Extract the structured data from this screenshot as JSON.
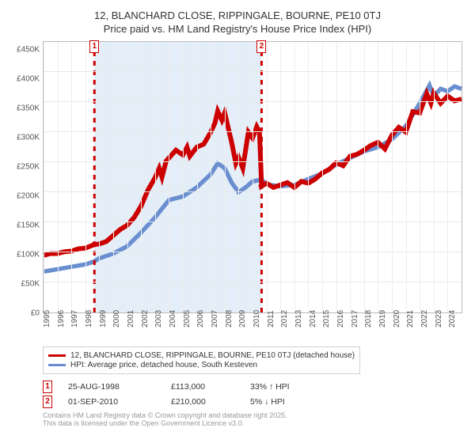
{
  "title_line1": "12, BLANCHARD CLOSE, RIPPINGALE, BOURNE, PE10 0TJ",
  "title_line2": "Price paid vs. HM Land Registry's House Price Index (HPI)",
  "chart": {
    "type": "line",
    "background_color": "#ffffff",
    "grid_color": "#e8e8e8",
    "border_color": "#bbbbbb",
    "shade_color": "#e4eef8",
    "ylim": [
      0,
      450000
    ],
    "ytick_step": 50000,
    "y_ticks": [
      "£0",
      "£50K",
      "£100K",
      "£150K",
      "£200K",
      "£250K",
      "£300K",
      "£350K",
      "£400K",
      "£450K"
    ],
    "xlim": [
      1995,
      2025
    ],
    "x_ticks": [
      1995,
      1996,
      1997,
      1998,
      1999,
      2000,
      2001,
      2002,
      2003,
      2004,
      2005,
      2006,
      2007,
      2008,
      2009,
      2010,
      2011,
      2012,
      2013,
      2014,
      2015,
      2016,
      2017,
      2018,
      2019,
      2020,
      2021,
      2022,
      2023,
      2024
    ],
    "series": [
      {
        "label": "12, BLANCHARD CLOSE, RIPPINGALE, BOURNE, PE10 0TJ (detached house)",
        "color": "#cc0000",
        "line_width": 2,
        "points": [
          [
            1995,
            95000
          ],
          [
            1995.5,
            98000
          ],
          [
            1996,
            98000
          ],
          [
            1996.5,
            101000
          ],
          [
            1997,
            102000
          ],
          [
            1997.5,
            106000
          ],
          [
            1998,
            107000
          ],
          [
            1998.65,
            113000
          ],
          [
            1999,
            114000
          ],
          [
            1999.5,
            118000
          ],
          [
            2000,
            128000
          ],
          [
            2000.5,
            138000
          ],
          [
            2001,
            145000
          ],
          [
            2001.5,
            158000
          ],
          [
            2002,
            177000
          ],
          [
            2002.5,
            204000
          ],
          [
            2003,
            224000
          ],
          [
            2003.3,
            240000
          ],
          [
            2003.5,
            225000
          ],
          [
            2003.8,
            252000
          ],
          [
            2004,
            257000
          ],
          [
            2004.5,
            270000
          ],
          [
            2005,
            262000
          ],
          [
            2005.3,
            275000
          ],
          [
            2005.5,
            260000
          ],
          [
            2006,
            275000
          ],
          [
            2006.5,
            280000
          ],
          [
            2007,
            300000
          ],
          [
            2007.3,
            315000
          ],
          [
            2007.5,
            335000
          ],
          [
            2007.8,
            320000
          ],
          [
            2008,
            332000
          ],
          [
            2008.5,
            283000
          ],
          [
            2008.8,
            248000
          ],
          [
            2009,
            258000
          ],
          [
            2009.3,
            240000
          ],
          [
            2009.7,
            300000
          ],
          [
            2010,
            290000
          ],
          [
            2010.3,
            309000
          ],
          [
            2010.5,
            300000
          ],
          [
            2010.65,
            210000
          ],
          [
            2011,
            215000
          ],
          [
            2011.5,
            208000
          ],
          [
            2012,
            212000
          ],
          [
            2012.5,
            216000
          ],
          [
            2013,
            208000
          ],
          [
            2013.5,
            218000
          ],
          [
            2014,
            215000
          ],
          [
            2014.5,
            222000
          ],
          [
            2015,
            232000
          ],
          [
            2015.5,
            238000
          ],
          [
            2016,
            249000
          ],
          [
            2016.5,
            244000
          ],
          [
            2017,
            260000
          ],
          [
            2017.5,
            263000
          ],
          [
            2018,
            270000
          ],
          [
            2018.5,
            278000
          ],
          [
            2019,
            283000
          ],
          [
            2019.5,
            272000
          ],
          [
            2020,
            295000
          ],
          [
            2020.5,
            308000
          ],
          [
            2021,
            300000
          ],
          [
            2021.5,
            334000
          ],
          [
            2022,
            332000
          ],
          [
            2022.5,
            364000
          ],
          [
            2022.8,
            348000
          ],
          [
            2023,
            365000
          ],
          [
            2023.5,
            348000
          ],
          [
            2024,
            360000
          ],
          [
            2024.5,
            352000
          ],
          [
            2025,
            355000
          ]
        ]
      },
      {
        "label": "HPI: Average price, detached house, South Kesteven",
        "color": "#6a8fd0",
        "line_width": 1.8,
        "points": [
          [
            1995,
            68000
          ],
          [
            1995.5,
            70000
          ],
          [
            1996,
            72000
          ],
          [
            1997,
            76000
          ],
          [
            1998,
            80000
          ],
          [
            1998.65,
            85000
          ],
          [
            1999,
            90000
          ],
          [
            2000,
            98000
          ],
          [
            2001,
            110000
          ],
          [
            2002,
            133000
          ],
          [
            2003,
            158000
          ],
          [
            2004,
            187000
          ],
          [
            2005,
            193000
          ],
          [
            2006,
            208000
          ],
          [
            2007,
            230000
          ],
          [
            2007.5,
            248000
          ],
          [
            2008,
            240000
          ],
          [
            2008.5,
            216000
          ],
          [
            2009,
            200000
          ],
          [
            2009.5,
            208000
          ],
          [
            2010,
            218000
          ],
          [
            2010.65,
            221000
          ],
          [
            2011,
            213000
          ],
          [
            2012,
            210000
          ],
          [
            2013,
            212000
          ],
          [
            2014,
            222000
          ],
          [
            2015,
            231000
          ],
          [
            2016,
            246000
          ],
          [
            2017,
            257000
          ],
          [
            2018,
            268000
          ],
          [
            2019,
            275000
          ],
          [
            2020,
            288000
          ],
          [
            2021,
            310000
          ],
          [
            2022,
            348000
          ],
          [
            2022.7,
            378000
          ],
          [
            2023,
            360000
          ],
          [
            2023.5,
            372000
          ],
          [
            2024,
            368000
          ],
          [
            2024.5,
            376000
          ],
          [
            2025,
            372000
          ]
        ]
      }
    ],
    "sale_dot_color": "#cc0000",
    "sales_markers": [
      {
        "num": "1",
        "x": 1998.65,
        "color": "#cc0000",
        "dot_y": 113000
      },
      {
        "num": "2",
        "x": 2010.65,
        "color": "#cc0000",
        "dot_y": 210000
      }
    ]
  },
  "legend": {
    "items": [
      {
        "label": "12, BLANCHARD CLOSE, RIPPINGALE, BOURNE, PE10 0TJ (detached house)",
        "color": "#cc0000"
      },
      {
        "label": "HPI: Average price, detached house, South Kesteven",
        "color": "#6a8fd0"
      }
    ]
  },
  "sales_table": [
    {
      "num": "1",
      "color": "#cc0000",
      "date": "25-AUG-1998",
      "price": "£113,000",
      "diff": "33% ↑ HPI"
    },
    {
      "num": "2",
      "color": "#cc0000",
      "date": "01-SEP-2010",
      "price": "£210,000",
      "diff": "5% ↓ HPI"
    }
  ],
  "footer_line1": "Contains HM Land Registry data © Crown copyright and database right 2025.",
  "footer_line2": "This data is licensed under the Open Government Licence v3.0."
}
